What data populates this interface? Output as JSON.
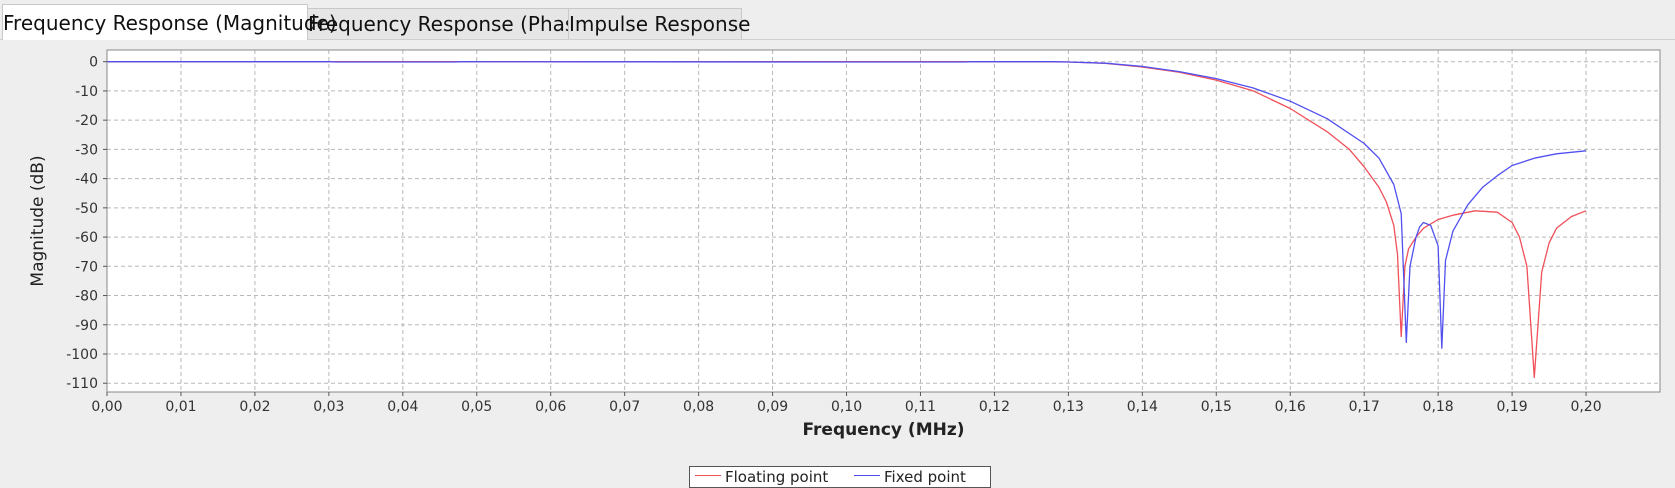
{
  "tabs": [
    {
      "label": "Frequency Response (Magnitude)",
      "active": true
    },
    {
      "label": "Frequency Response (Phase)",
      "active": false
    },
    {
      "label": "Impulse Response",
      "active": false
    }
  ],
  "colors": {
    "floating": "#f0505a",
    "fixed": "#5050f0",
    "grid": "#b8b8b8",
    "plot_bg": "#ffffff"
  },
  "chart_data": {
    "type": "line",
    "xlabel": "Frequency (MHz)",
    "ylabel": "Magnitude (dB)",
    "xlim": [
      0.0,
      0.21
    ],
    "ylim": [
      -113,
      4
    ],
    "x_ticks": [
      0.0,
      0.01,
      0.02,
      0.03,
      0.04,
      0.05,
      0.06,
      0.07,
      0.08,
      0.09,
      0.1,
      0.11,
      0.12,
      0.13,
      0.14,
      0.15,
      0.16,
      0.17,
      0.18,
      0.19,
      0.2
    ],
    "x_tick_labels": [
      "0,00",
      "0,01",
      "0,02",
      "0,03",
      "0,04",
      "0,05",
      "0,06",
      "0,07",
      "0,08",
      "0,09",
      "0,10",
      "0,11",
      "0,12",
      "0,13",
      "0,14",
      "0,15",
      "0,16",
      "0,17",
      "0,18",
      "0,19",
      "0,20"
    ],
    "y_ticks": [
      0,
      -10,
      -20,
      -30,
      -40,
      -50,
      -60,
      -70,
      -80,
      -90,
      -100,
      -110
    ],
    "y_tick_labels": [
      "0",
      "-10",
      "-20",
      "-30",
      "-40",
      "-50",
      "-60",
      "-70",
      "-80",
      "-90",
      "-100",
      "-110"
    ],
    "grid": true,
    "legend_position": "bottom-center",
    "series": [
      {
        "name": "Floating point",
        "color": "#f0505a",
        "points": [
          [
            0.0,
            0
          ],
          [
            0.125,
            0
          ],
          [
            0.13,
            -0.1
          ],
          [
            0.135,
            -0.6
          ],
          [
            0.14,
            -1.8
          ],
          [
            0.145,
            -3.6
          ],
          [
            0.15,
            -6.3
          ],
          [
            0.155,
            -10
          ],
          [
            0.16,
            -16
          ],
          [
            0.165,
            -24
          ],
          [
            0.168,
            -30
          ],
          [
            0.17,
            -36
          ],
          [
            0.172,
            -43
          ],
          [
            0.173,
            -48
          ],
          [
            0.174,
            -56
          ],
          [
            0.1745,
            -66
          ],
          [
            0.175,
            -94
          ],
          [
            0.1755,
            -70
          ],
          [
            0.176,
            -64
          ],
          [
            0.177,
            -60
          ],
          [
            0.178,
            -57
          ],
          [
            0.18,
            -54
          ],
          [
            0.182,
            -52.5
          ],
          [
            0.185,
            -51
          ],
          [
            0.188,
            -51.5
          ],
          [
            0.19,
            -55
          ],
          [
            0.191,
            -60
          ],
          [
            0.192,
            -70
          ],
          [
            0.193,
            -108
          ],
          [
            0.194,
            -72
          ],
          [
            0.195,
            -62
          ],
          [
            0.196,
            -57
          ],
          [
            0.198,
            -53
          ],
          [
            0.2,
            -51
          ]
        ]
      },
      {
        "name": "Fixed point",
        "color": "#5050f0",
        "points": [
          [
            0.0,
            0
          ],
          [
            0.03,
            0
          ],
          [
            0.031,
            -0.1
          ],
          [
            0.047,
            -0.1
          ],
          [
            0.048,
            0
          ],
          [
            0.1,
            -0.1
          ],
          [
            0.116,
            -0.1
          ],
          [
            0.117,
            0
          ],
          [
            0.128,
            0
          ],
          [
            0.13,
            -0.1
          ],
          [
            0.135,
            -0.5
          ],
          [
            0.14,
            -1.6
          ],
          [
            0.145,
            -3.4
          ],
          [
            0.15,
            -5.8
          ],
          [
            0.155,
            -9
          ],
          [
            0.16,
            -13.5
          ],
          [
            0.165,
            -19.5
          ],
          [
            0.17,
            -28
          ],
          [
            0.172,
            -33
          ],
          [
            0.174,
            -42
          ],
          [
            0.175,
            -52
          ],
          [
            0.1757,
            -96
          ],
          [
            0.1762,
            -70
          ],
          [
            0.177,
            -60
          ],
          [
            0.1775,
            -56.5
          ],
          [
            0.178,
            -55
          ],
          [
            0.179,
            -56
          ],
          [
            0.18,
            -63
          ],
          [
            0.1805,
            -98
          ],
          [
            0.181,
            -68
          ],
          [
            0.182,
            -58
          ],
          [
            0.184,
            -49
          ],
          [
            0.186,
            -43
          ],
          [
            0.188,
            -39
          ],
          [
            0.19,
            -35.5
          ],
          [
            0.193,
            -33
          ],
          [
            0.196,
            -31.5
          ],
          [
            0.2,
            -30.5
          ]
        ]
      }
    ]
  }
}
